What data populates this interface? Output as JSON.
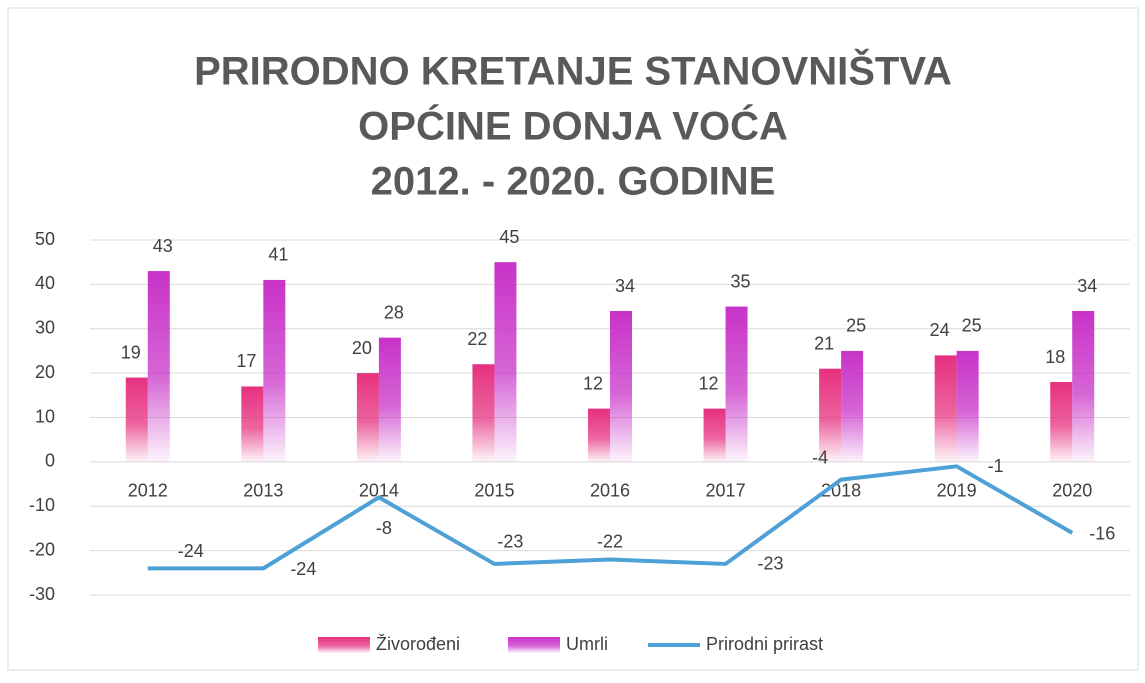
{
  "chart_data": {
    "type": "bar",
    "title": [
      "PRIRODNO KRETANJE STANOVNIŠTVA",
      "OPĆINE DONJA VOĆA",
      "2012. - 2020. GODINE"
    ],
    "categories": [
      "2012",
      "2013",
      "2014",
      "2015",
      "2016",
      "2017",
      "2018",
      "2019",
      "2020"
    ],
    "series": [
      {
        "name": "Živorođeni",
        "type": "bar",
        "color": "#e6307f",
        "values": [
          19,
          17,
          20,
          22,
          12,
          12,
          21,
          24,
          18
        ]
      },
      {
        "name": "Umrli",
        "type": "bar",
        "color": "#c832c8",
        "values": [
          43,
          41,
          28,
          45,
          34,
          35,
          25,
          25,
          34
        ]
      },
      {
        "name": "Prirodni prirast",
        "type": "line",
        "color": "#4ea1d6",
        "values": [
          -24,
          -24,
          -8,
          -23,
          -22,
          -23,
          -4,
          -1,
          -16
        ]
      }
    ],
    "ylim": [
      -30,
      50
    ],
    "yticks": [
      -30,
      -20,
      -10,
      0,
      10,
      20,
      30,
      40,
      50
    ],
    "grid": true,
    "legend": "bottom"
  }
}
